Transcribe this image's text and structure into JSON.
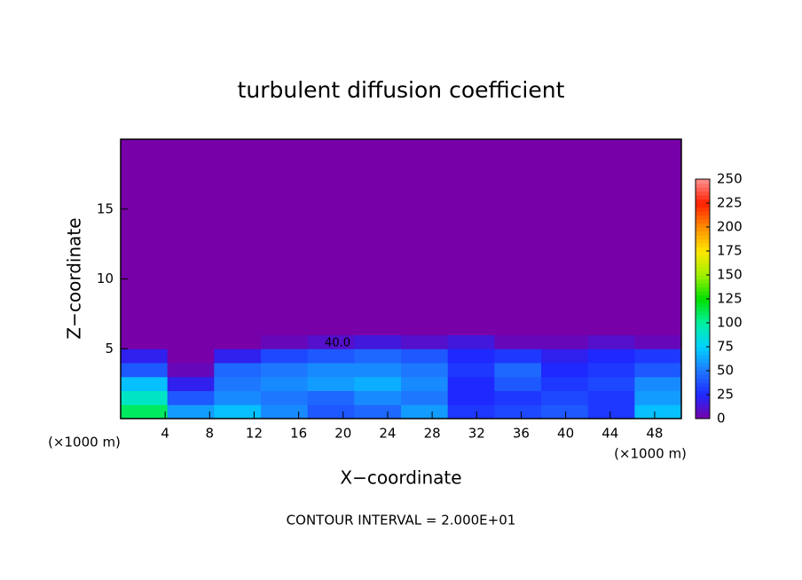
{
  "chart_data": {
    "type": "heatmap",
    "title": "turbulent diffusion coefficient",
    "x_label": "X−coordinate",
    "y_label": "Z−coordinate",
    "x_unit": "(×1000 m)",
    "footnote": "CONTOUR INTERVAL = 2.000E+01",
    "annotations": [
      {
        "text": "40.0",
        "x": 19.5,
        "y": 5.4
      }
    ],
    "xlim": [
      0,
      50.4
    ],
    "ylim": [
      0,
      20
    ],
    "xticks": [
      4,
      8,
      12,
      16,
      20,
      24,
      28,
      32,
      36,
      40,
      44,
      48
    ],
    "yticks": [
      5,
      10,
      15
    ],
    "x_edges": [
      0,
      4.2,
      8.4,
      12.6,
      16.8,
      21,
      25.2,
      29.4,
      33.6,
      37.8,
      42,
      46.2,
      50.4
    ],
    "y_edges": [
      0,
      1,
      2,
      3,
      4,
      5,
      6,
      20
    ],
    "z": [
      [
        110,
        60,
        70,
        55,
        40,
        45,
        60,
        30,
        35,
        40,
        30,
        70
      ],
      [
        90,
        40,
        55,
        50,
        45,
        55,
        50,
        25,
        30,
        35,
        30,
        60
      ],
      [
        70,
        20,
        50,
        55,
        60,
        65,
        55,
        25,
        40,
        30,
        35,
        55
      ],
      [
        40,
        5,
        45,
        50,
        55,
        55,
        50,
        30,
        45,
        25,
        30,
        40
      ],
      [
        20,
        0,
        20,
        35,
        40,
        45,
        40,
        25,
        30,
        20,
        25,
        30
      ],
      [
        0,
        0,
        0,
        5,
        10,
        15,
        10,
        15,
        5,
        5,
        10,
        5
      ],
      [
        0,
        0,
        0,
        0,
        0,
        0,
        0,
        0,
        0,
        0,
        0,
        0
      ]
    ],
    "clim": [
      0,
      250
    ],
    "cticks": [
      0,
      25,
      50,
      75,
      100,
      125,
      150,
      175,
      200,
      225,
      250
    ],
    "colorscale": [
      "#7800a8",
      "#1e28ff",
      "#1e78ff",
      "#00d2ff",
      "#00f0a0",
      "#00e000",
      "#a0f000",
      "#ffe600",
      "#ff8c00",
      "#ff1e00",
      "#ff9090"
    ]
  }
}
